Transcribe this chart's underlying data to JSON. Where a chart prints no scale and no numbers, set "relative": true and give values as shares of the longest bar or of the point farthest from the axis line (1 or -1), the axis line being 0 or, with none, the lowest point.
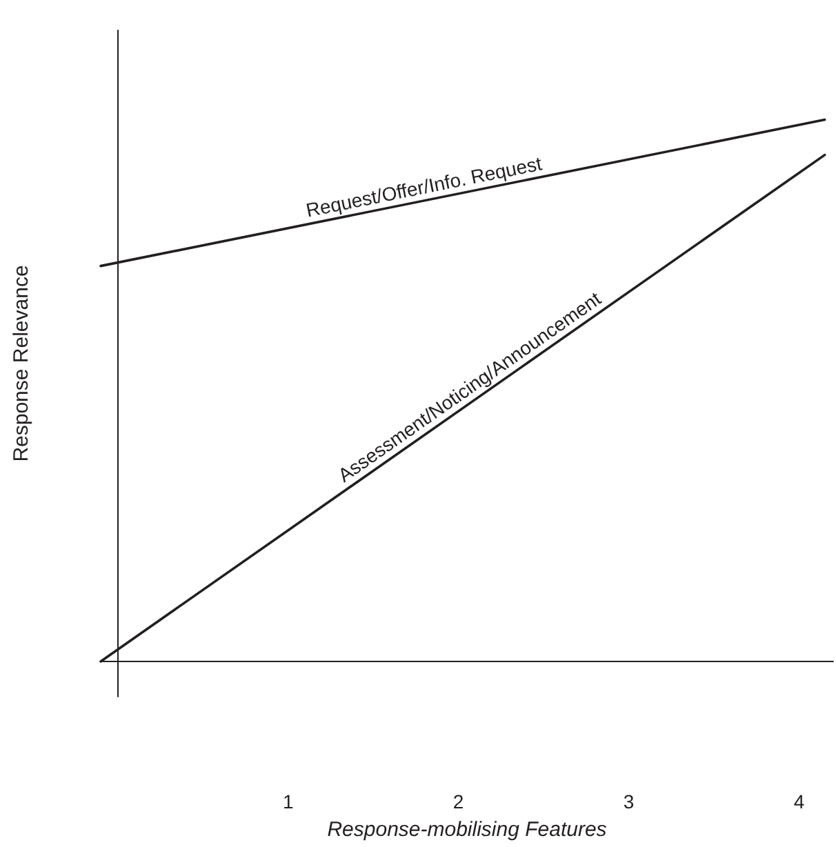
{
  "chart_data": {
    "type": "line",
    "relative": true,
    "xlabel": "Response-mobilising Features",
    "ylabel": "Response Relevance",
    "x": [
      -0.1,
      4.15
    ],
    "xlim": [
      -0.1,
      4.2
    ],
    "xticks": [
      1,
      2,
      3,
      4
    ],
    "grid": false,
    "legend": false,
    "marker": "none",
    "line_style": "solid",
    "series": [
      {
        "name": "Request/Offer/Info. Request",
        "color": "#231f20",
        "values": [
          0.73,
          1
        ]
      },
      {
        "name": "Assessment/Noticing/Announcement",
        "color": "#231f20",
        "values": [
          0,
          0.935
        ]
      }
    ]
  }
}
